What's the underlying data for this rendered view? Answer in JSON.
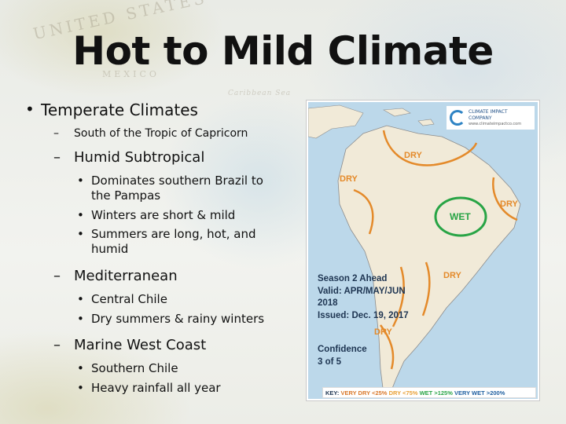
{
  "slide": {
    "title": "Hot to Mild Climate",
    "background_labels": [
      "UNITED STATES",
      "MEXICO",
      "Caribbean Sea"
    ]
  },
  "outline": {
    "heading": "Temperate Climates",
    "intro": "South of the Tropic of Capricorn",
    "sections": [
      {
        "name": "Humid Subtropical",
        "bullets": [
          "Dominates southern Brazil to the Pampas",
          "Winters are short & mild",
          "Summers are long, hot, and humid"
        ]
      },
      {
        "name": "Mediterranean",
        "bullets": [
          "Central Chile",
          "Dry summers & rainy winters"
        ]
      },
      {
        "name": "Marine West Coast",
        "bullets": [
          "Southern Chile",
          "Heavy rainfall all year"
        ]
      }
    ]
  },
  "map": {
    "logo_name": "CLIMATE IMPACT COMPANY",
    "logo_url": "www.climateimpactco.com",
    "zones": {
      "dry_north": "DRY",
      "dry_west": "DRY",
      "wet_center": "WET",
      "dry_east": "DRY",
      "dry_south_east": "DRY",
      "dry_south": "DRY"
    },
    "season": {
      "line1": "Season 2 Ahead",
      "line2": "Valid: APR/MAY/JUN",
      "line3": "2018",
      "line4": "Issued: Dec. 19, 2017"
    },
    "confidence": {
      "line1": "Confidence",
      "line2": "3 of 5"
    },
    "key": {
      "label": "KEY:",
      "very_dry": "VERY DRY <25%",
      "dry": "DRY <75%",
      "wet": "WET >125%",
      "very_wet": "VERY WET >200%"
    },
    "colors": {
      "land": "#f1ead8",
      "ocean": "#bcd8ea",
      "dry": "#e48a2a",
      "wet": "#28a445"
    }
  }
}
